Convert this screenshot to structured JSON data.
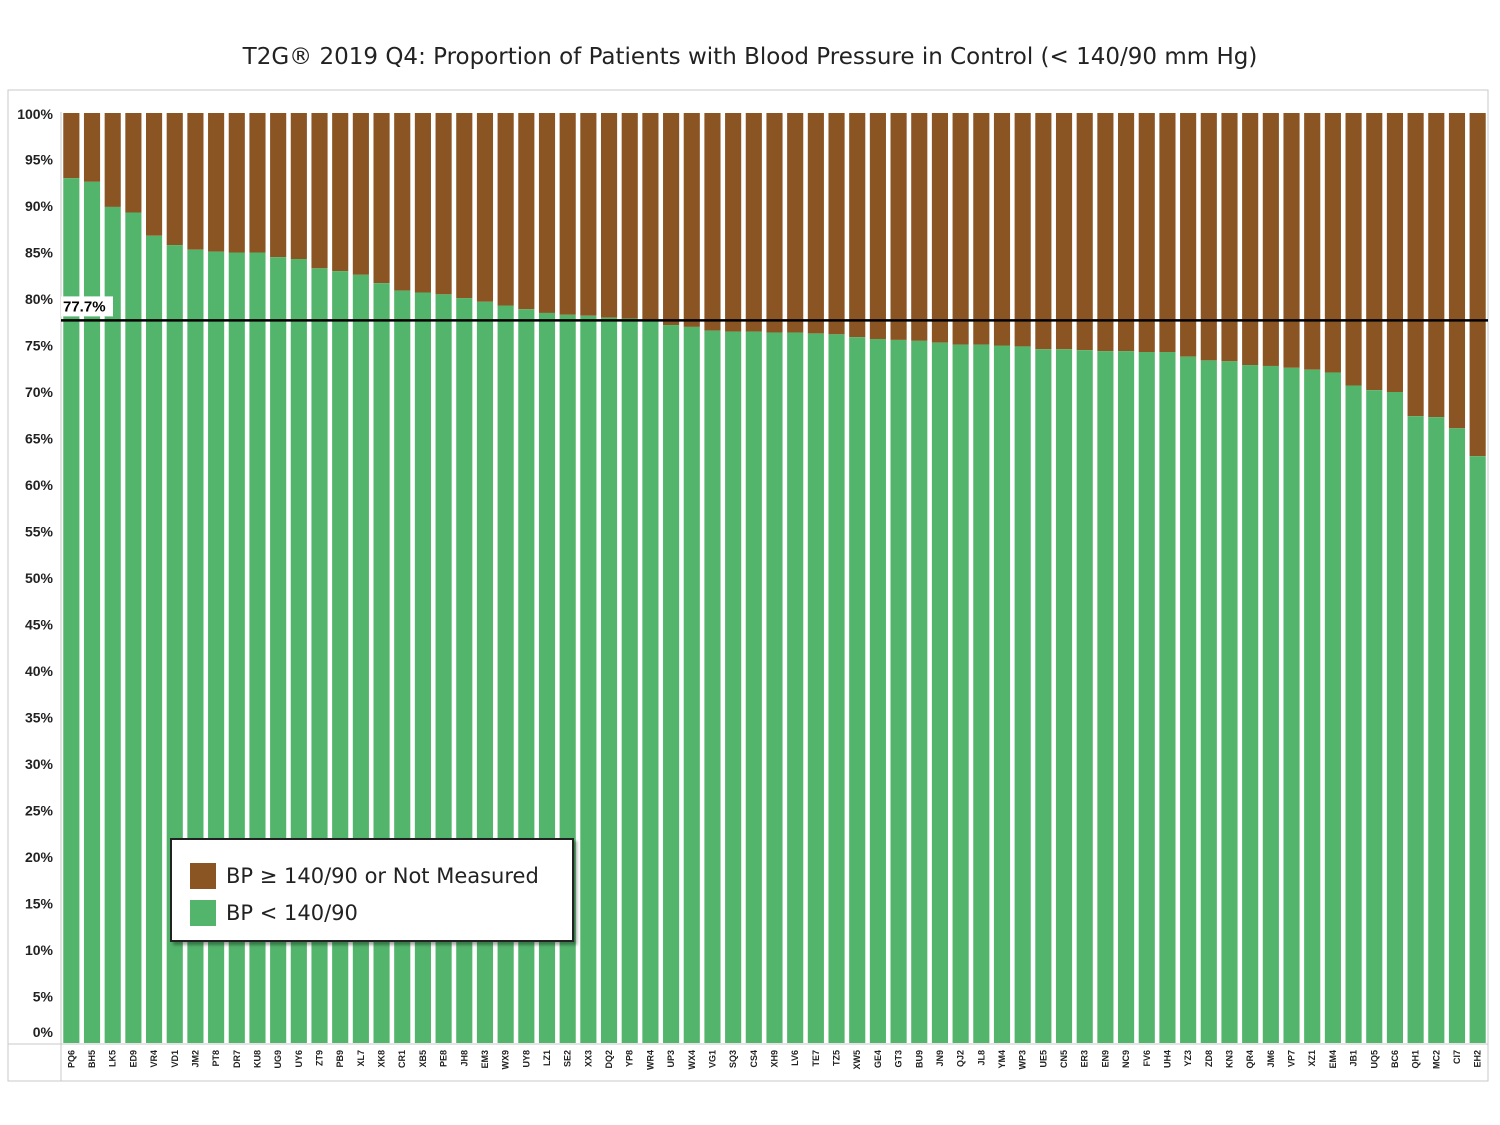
{
  "chart_data": {
    "type": "bar",
    "stacked": true,
    "title": "T2G® 2019 Q4: Proportion of Patients with Blood Pressure in Control (< 140/90 mm Hg)",
    "xlabel": "",
    "ylabel": "",
    "ylim": [
      0,
      100
    ],
    "yticks": [
      "0%",
      "5%",
      "10%",
      "15%",
      "20%",
      "25%",
      "30%",
      "35%",
      "40%",
      "45%",
      "50%",
      "55%",
      "60%",
      "65%",
      "70%",
      "75%",
      "80%",
      "85%",
      "90%",
      "95%",
      "100%"
    ],
    "categories": [
      "PQ6",
      "BH5",
      "LK5",
      "ED9",
      "VR4",
      "VD1",
      "JM2",
      "PT8",
      "DR7",
      "KU8",
      "UG9",
      "UY6",
      "ZT9",
      "PB9",
      "XL7",
      "XK8",
      "CR1",
      "XB5",
      "PE8",
      "JH8",
      "EM3",
      "WX9",
      "UY8",
      "LZ1",
      "SE2",
      "XX3",
      "DQ2",
      "YP8",
      "WR4",
      "UP3",
      "WX4",
      "VG1",
      "SQ3",
      "CS4",
      "XH9",
      "LV6",
      "TE7",
      "TZ5",
      "XW5",
      "GE4",
      "GT3",
      "BU9",
      "JN9",
      "QJ2",
      "JL8",
      "YM4",
      "WP3",
      "UE5",
      "CN5",
      "ER3",
      "EN9",
      "NC9",
      "FV6",
      "UH4",
      "YZ3",
      "ZD8",
      "KN3",
      "QR4",
      "JM6",
      "VP7",
      "XZ1",
      "EM4",
      "JB1",
      "UQ5",
      "BC6",
      "QH1",
      "MC2",
      "CI7",
      "EH2"
    ],
    "series": [
      {
        "name": "BP < 140/90",
        "color": "#53b56c",
        "values": [
          93.0,
          92.6,
          89.9,
          89.3,
          86.8,
          85.8,
          85.3,
          85.1,
          85.0,
          85.0,
          84.5,
          84.3,
          83.3,
          83.0,
          82.6,
          81.7,
          80.9,
          80.7,
          80.5,
          80.1,
          79.7,
          79.3,
          78.9,
          78.5,
          78.3,
          78.2,
          78.0,
          77.9,
          77.8,
          77.2,
          77.0,
          76.6,
          76.5,
          76.5,
          76.4,
          76.4,
          76.3,
          76.2,
          75.9,
          75.7,
          75.6,
          75.5,
          75.3,
          75.1,
          75.1,
          75.0,
          74.9,
          74.6,
          74.6,
          74.5,
          74.4,
          74.4,
          74.3,
          74.3,
          73.8,
          73.4,
          73.3,
          72.9,
          72.8,
          72.6,
          72.4,
          72.1,
          70.7,
          70.2,
          70.0,
          67.4,
          67.3,
          66.1,
          63.1
        ]
      },
      {
        "name": "BP ≥ 140/90 or Not Measured",
        "color": "#8b5523",
        "values": [
          7.0,
          7.4,
          10.1,
          10.7,
          13.2,
          14.2,
          14.7,
          14.9,
          15.0,
          15.0,
          15.5,
          15.7,
          16.7,
          17.0,
          17.4,
          18.3,
          19.1,
          19.3,
          19.5,
          19.9,
          20.3,
          20.7,
          21.1,
          21.5,
          21.7,
          21.8,
          22.0,
          22.1,
          22.2,
          22.8,
          23.0,
          23.4,
          23.5,
          23.5,
          23.6,
          23.6,
          23.7,
          23.8,
          24.1,
          24.3,
          24.4,
          24.5,
          24.7,
          24.9,
          24.9,
          25.0,
          25.1,
          25.4,
          25.4,
          25.5,
          25.6,
          25.6,
          25.7,
          25.7,
          26.2,
          26.6,
          26.7,
          27.1,
          27.2,
          27.4,
          27.6,
          27.9,
          29.3,
          29.8,
          30.0,
          32.6,
          32.7,
          33.9,
          36.9
        ]
      }
    ],
    "reference_line": {
      "value": 77.7,
      "label": "77.7%",
      "color": "#000000"
    },
    "legend": {
      "placement": "bottom-left",
      "items": [
        {
          "label": "BP ≥ 140/90 or Not Measured",
          "color": "#8b5523"
        },
        {
          "label": "BP < 140/90",
          "color": "#53b56c"
        }
      ]
    },
    "grid": false
  }
}
